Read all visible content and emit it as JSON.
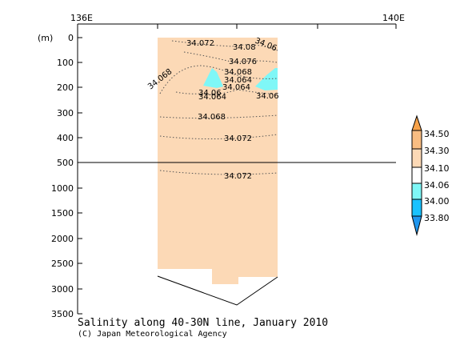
{
  "chart_data": {
    "type": "contour",
    "title": "Salinity along 40-30N line, January 2010",
    "credit": "(C) Japan Meteorological Agency",
    "ylabel": "(m)",
    "x_ticks": [
      "136E",
      "140E"
    ],
    "y_ticks_upper": [
      "0",
      "100",
      "200",
      "300",
      "400",
      "500"
    ],
    "y_ticks_lower": [
      "1000",
      "1500",
      "2000",
      "2500",
      "3000",
      "3500"
    ],
    "colorbar": {
      "levels": [
        "34.50",
        "34.30",
        "34.10",
        "34.06",
        "34.00",
        "33.80"
      ],
      "colors": [
        "#f7a24a",
        "#f9bd82",
        "#fcd9b6",
        "#ffffff",
        "#7ff7f7",
        "#19c2ff"
      ]
    },
    "contour_labels": [
      "34.072",
      "34.08",
      "34.06",
      "34.076",
      "34.068",
      "34.064",
      "34.064",
      "34.068",
      "34.06",
      "34.064",
      "34.06",
      "34.068",
      "34.072",
      "34.072"
    ]
  }
}
